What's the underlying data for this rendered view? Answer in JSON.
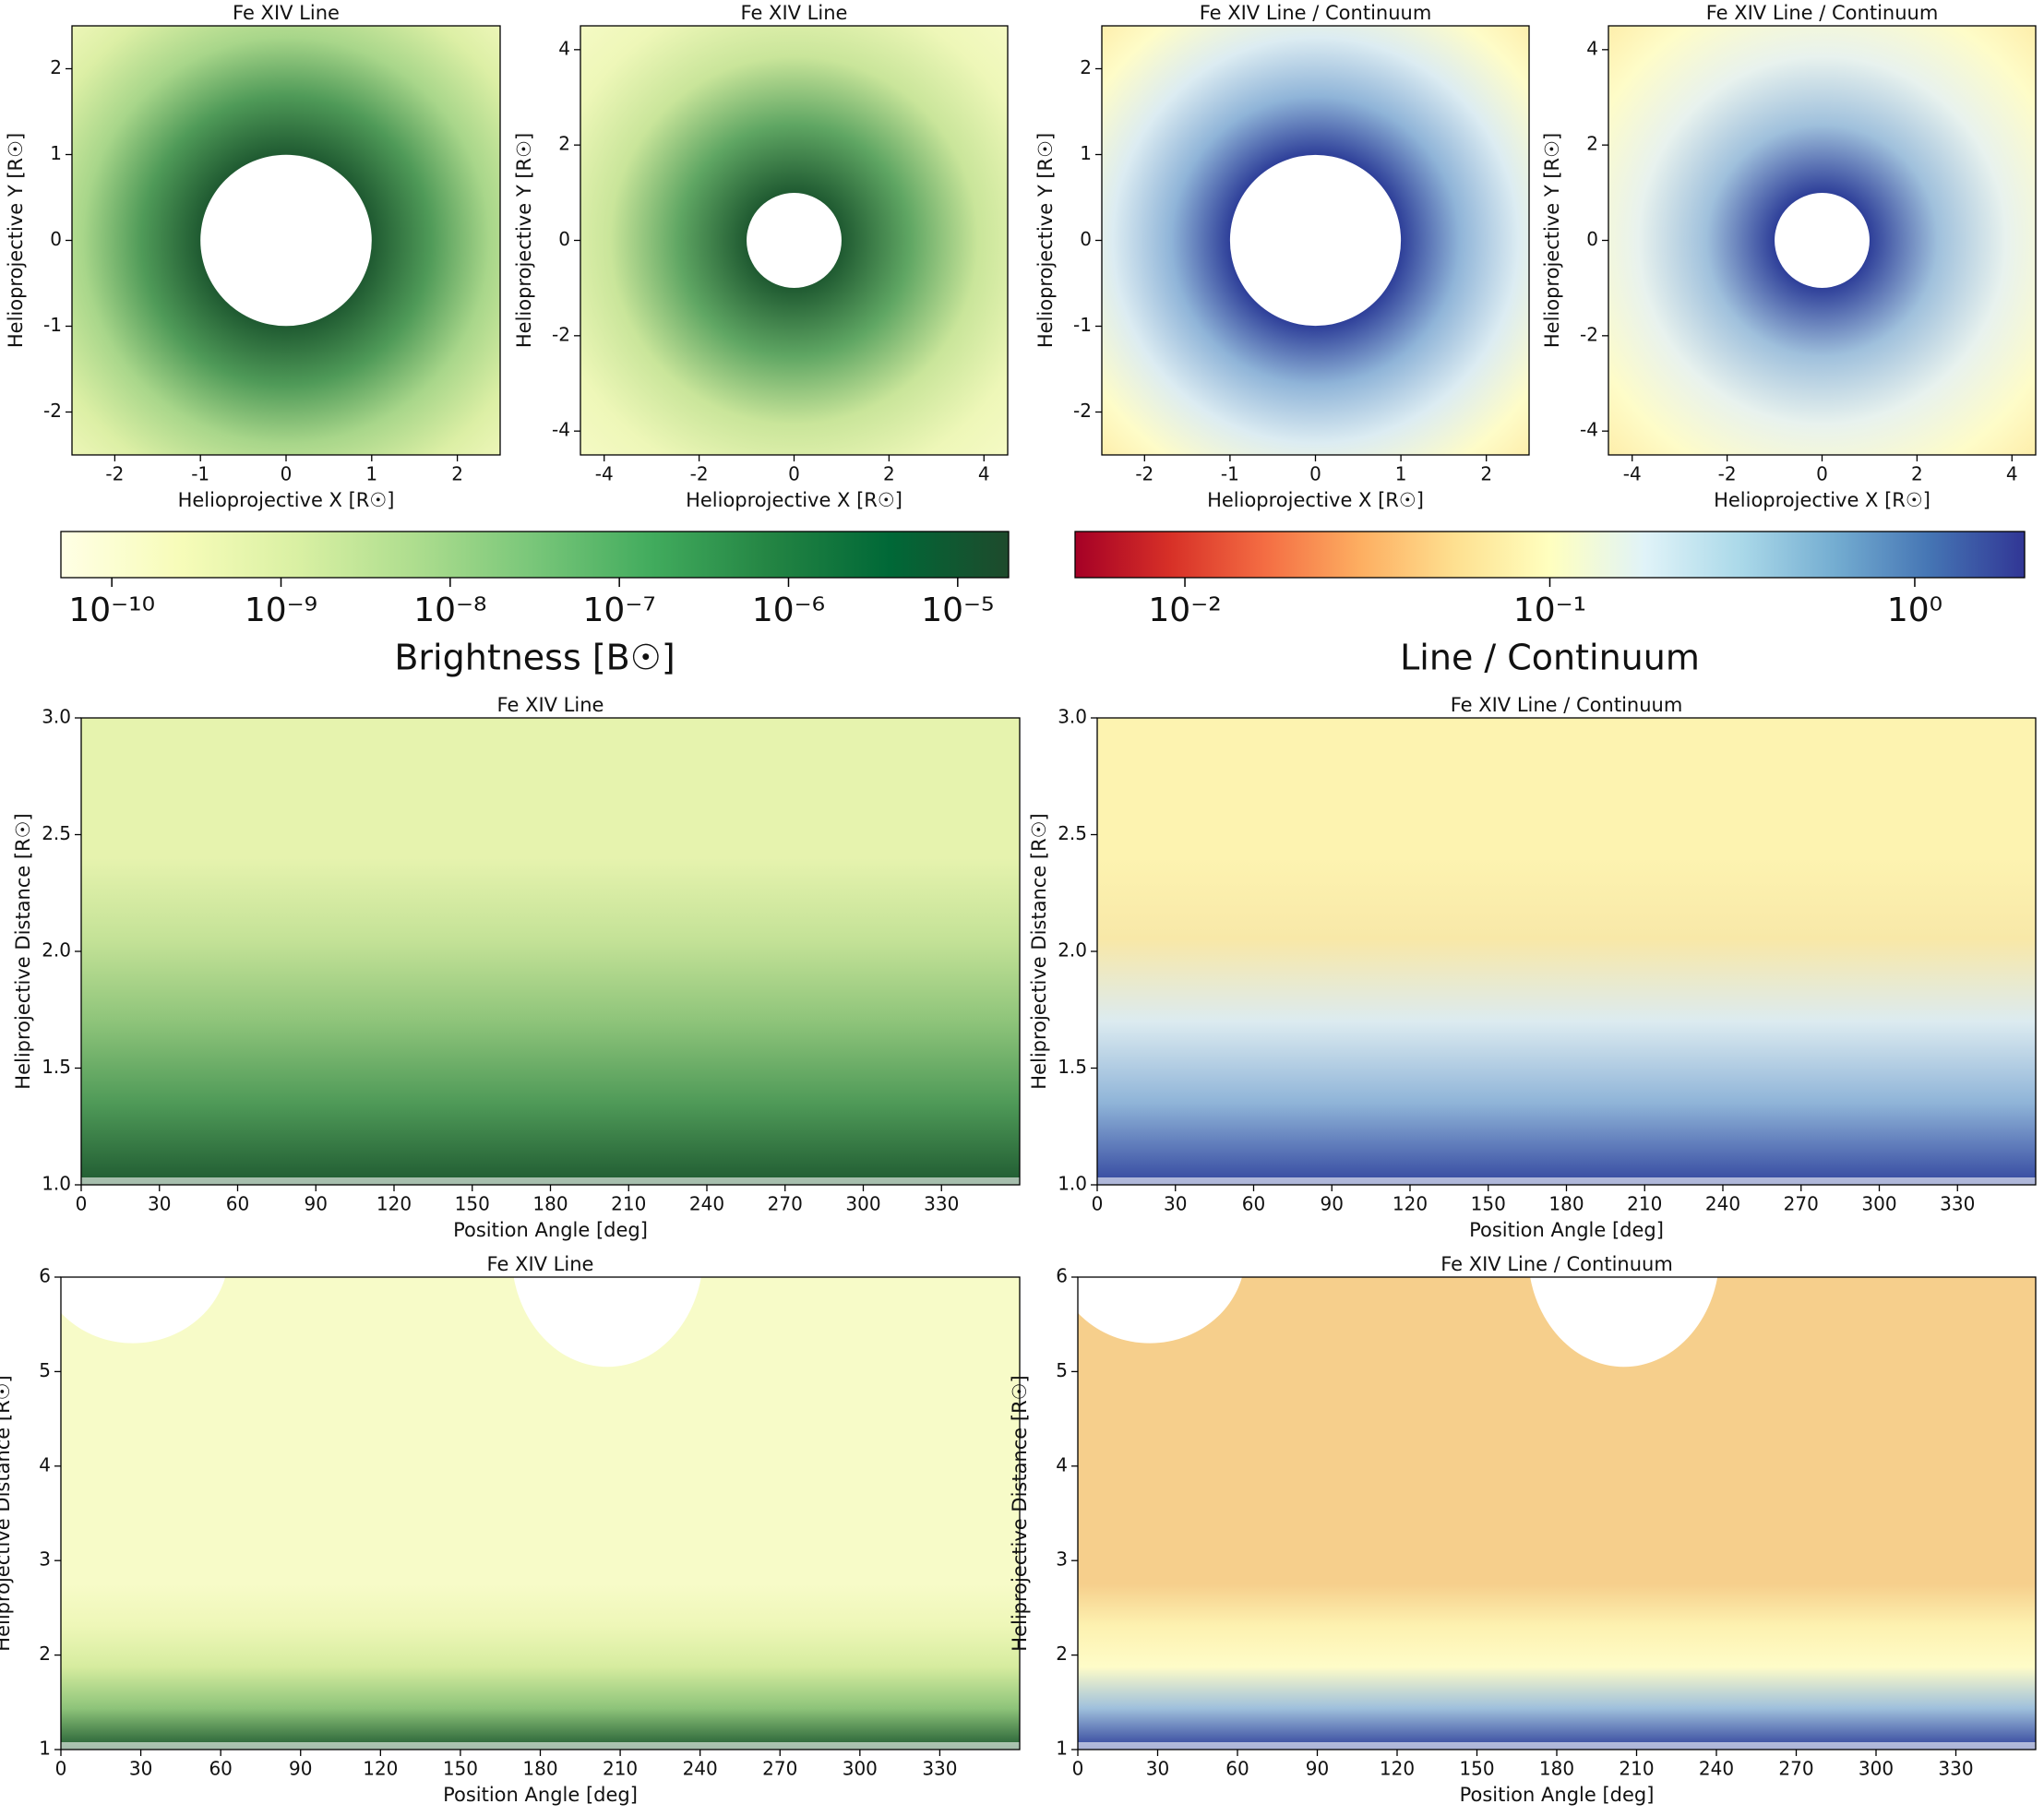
{
  "chart_data": [
    {
      "type": "image",
      "title": "Fe XIV Line",
      "xlabel": "Helioprojective X [R☉]",
      "ylabel": "Helioprojective Y [R☉]",
      "xlim": [
        -2.5,
        2.5
      ],
      "ylim": [
        -2.5,
        2.5
      ],
      "xticks": [
        -2,
        -1,
        0,
        1,
        2
      ],
      "yticks": [
        -2,
        -1,
        0,
        1,
        2
      ],
      "view": "disk",
      "colors": [
        "#f4f9c0",
        "#dcefa5",
        "#a8d68a",
        "#4f9a58",
        "#1f5a31"
      ]
    },
    {
      "type": "image",
      "title": "Fe XIV Line",
      "xlabel": "Helioprojective X [R☉]",
      "ylabel": "Helioprojective Y [R☉]",
      "xlim": [
        -4.5,
        4.5
      ],
      "ylim": [
        -4.5,
        4.5
      ],
      "xticks": [
        -4,
        -2,
        0,
        2,
        4
      ],
      "yticks": [
        -4,
        -2,
        0,
        2,
        4
      ],
      "view": "disk",
      "colors": [
        "#f7fbc8",
        "#eef7b8",
        "#c9e59a",
        "#5fa663",
        "#1f5a31"
      ]
    },
    {
      "type": "image",
      "title": "Fe XIV Line / Continuum",
      "xlabel": "Helioprojective X [R☉]",
      "ylabel": "Helioprojective Y [R☉]",
      "xlim": [
        -2.5,
        2.5
      ],
      "ylim": [
        -2.5,
        2.5
      ],
      "xticks": [
        -2,
        -1,
        0,
        1,
        2
      ],
      "yticks": [
        -2,
        -1,
        0,
        1,
        2
      ],
      "view": "disk",
      "colors": [
        "#fde9a0",
        "#fefcc8",
        "#dcecf2",
        "#8fb4d8",
        "#2e3f99"
      ]
    },
    {
      "type": "image",
      "title": "Fe XIV Line / Continuum",
      "xlabel": "Helioprojective X [R☉]",
      "ylabel": "Helioprojective Y [R☉]",
      "xlim": [
        -4.5,
        4.5
      ],
      "ylim": [
        -4.5,
        4.5
      ],
      "xticks": [
        -4,
        -2,
        0,
        2,
        4
      ],
      "yticks": [
        -4,
        -2,
        0,
        2,
        4
      ],
      "view": "disk",
      "colors": [
        "#fde9a0",
        "#fefcc8",
        "#e8f2ee",
        "#9fc0dc",
        "#2e3f99"
      ]
    },
    {
      "type": "colorbar",
      "label": "Brightness [B☉]",
      "log_scale": true,
      "xlim": [
        5e-11,
        2e-05
      ],
      "xticks": [
        {
          "value": 1e-10,
          "label": "10⁻¹⁰"
        },
        {
          "value": 1e-09,
          "label": "10⁻⁹"
        },
        {
          "value": 1e-08,
          "label": "10⁻⁸"
        },
        {
          "value": 1e-07,
          "label": "10⁻⁷"
        },
        {
          "value": 1e-06,
          "label": "10⁻⁶"
        },
        {
          "value": 1e-05,
          "label": "10⁻⁵"
        }
      ],
      "colors": [
        "#ffffe5",
        "#f7fcb9",
        "#d9f0a3",
        "#addd8e",
        "#78c679",
        "#41ab5d",
        "#238443",
        "#006837",
        "#1e4a2c"
      ]
    },
    {
      "type": "colorbar",
      "label": "Line / Continuum",
      "log_scale": true,
      "xlim": [
        0.005,
        2
      ],
      "xticks": [
        {
          "value": 0.01,
          "label": "10⁻²"
        },
        {
          "value": 0.1,
          "label": "10⁻¹"
        },
        {
          "value": 1,
          "label": "10⁰"
        }
      ],
      "colors": [
        "#a50026",
        "#d73027",
        "#f46d43",
        "#fdae61",
        "#fee090",
        "#ffffbf",
        "#e0f3f8",
        "#abd9e9",
        "#74add1",
        "#4575b4",
        "#313695"
      ]
    },
    {
      "type": "image",
      "title": "Fe XIV Line",
      "xlabel": "Position Angle [deg]",
      "ylabel": "Heliprojective Distance [R☉]",
      "xlim": [
        0,
        360
      ],
      "ylim": [
        1,
        3
      ],
      "xticks": [
        0,
        30,
        60,
        90,
        120,
        150,
        180,
        210,
        240,
        270,
        300,
        330
      ],
      "yticks": [
        {
          "value": 1,
          "label": "1.0"
        },
        {
          "value": 1.5,
          "label": "1.5"
        },
        {
          "value": 2,
          "label": "2.0"
        },
        {
          "value": 2.5,
          "label": "2.5"
        },
        {
          "value": 3,
          "label": "3.0"
        }
      ],
      "view": "polar",
      "colors": [
        "#e6f3ae",
        "#c4e297",
        "#8ec47a",
        "#4f9a58",
        "#1f5a31"
      ]
    },
    {
      "type": "image",
      "title": "Fe XIV Line / Continuum",
      "xlabel": "Position Angle [deg]",
      "ylabel": "Heliprojective Distance [R☉]",
      "xlim": [
        0,
        360
      ],
      "ylim": [
        1,
        3
      ],
      "xticks": [
        0,
        30,
        60,
        90,
        120,
        150,
        180,
        210,
        240,
        270,
        300,
        330
      ],
      "yticks": [
        {
          "value": 1,
          "label": "1.0"
        },
        {
          "value": 1.5,
          "label": "1.5"
        },
        {
          "value": 2,
          "label": "2.0"
        },
        {
          "value": 2.5,
          "label": "2.5"
        },
        {
          "value": 3,
          "label": "3.0"
        }
      ],
      "view": "polar",
      "colors": [
        "#fdf3b0",
        "#f8e8a8",
        "#dcebf0",
        "#8fb4d8",
        "#33479f"
      ]
    },
    {
      "type": "image",
      "title": "Fe XIV Line",
      "xlabel": "Position Angle [deg]",
      "ylabel": "Heliprojective Distance [R☉]",
      "xlim": [
        0,
        360
      ],
      "ylim": [
        1,
        6
      ],
      "xticks": [
        0,
        30,
        60,
        90,
        120,
        150,
        180,
        210,
        240,
        270,
        300,
        330
      ],
      "yticks": [
        1,
        2,
        3,
        4,
        5,
        6
      ],
      "view": "polar-wide",
      "colors": [
        "#f7fbc8",
        "#eef7b8",
        "#d6ec9f",
        "#8ec47a",
        "#1f5a31"
      ]
    },
    {
      "type": "image",
      "title": "Fe XIV Line / Continuum",
      "xlabel": "Position Angle [deg]",
      "ylabel": "Heliprojective Distance [R☉]",
      "xlim": [
        0,
        360
      ],
      "ylim": [
        1,
        6
      ],
      "xticks": [
        0,
        30,
        60,
        90,
        120,
        150,
        180,
        210,
        240,
        270,
        300,
        330
      ],
      "yticks": [
        1,
        2,
        3,
        4,
        5,
        6
      ],
      "view": "polar-wide",
      "colors": [
        "#f6cf8c",
        "#fdf1b0",
        "#fefcc8",
        "#9fc0dc",
        "#2e3f99"
      ]
    }
  ]
}
